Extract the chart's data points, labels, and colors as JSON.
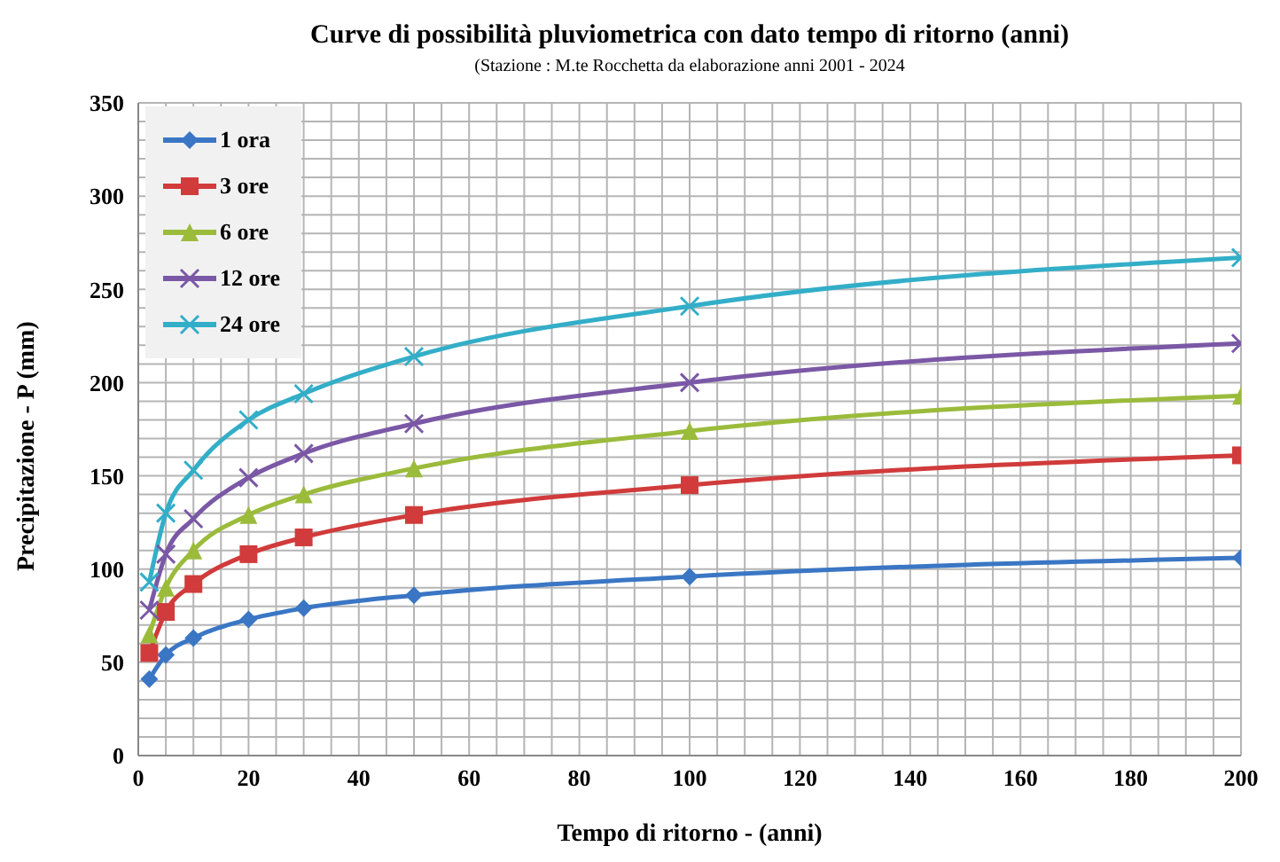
{
  "chart_data": {
    "type": "line",
    "title": "Curve di possibilità pluviometrica con dato tempo di ritorno (anni)",
    "subtitle": "(Stazione : M.te Rocchetta da elaborazione anni 2001 - 2024",
    "xlabel": "Tempo di ritorno - (anni)",
    "ylabel": "Precipitazione - P (mm)",
    "x": [
      2,
      5,
      10,
      20,
      30,
      50,
      100,
      200
    ],
    "series": [
      {
        "name": "1 ora",
        "color": "#3a76c4",
        "marker": "diamond",
        "values": [
          41,
          54,
          63,
          73,
          79,
          86,
          96,
          106
        ]
      },
      {
        "name": "3 ore",
        "color": "#d13b3b",
        "marker": "square",
        "values": [
          55,
          77,
          92,
          108,
          117,
          129,
          145,
          161
        ]
      },
      {
        "name": "6 ore",
        "color": "#9bbb3b",
        "marker": "triangle",
        "values": [
          65,
          90,
          110,
          129,
          140,
          154,
          174,
          193
        ]
      },
      {
        "name": "12 ore",
        "color": "#7b58a6",
        "marker": "cross",
        "values": [
          78,
          108,
          127,
          149,
          162,
          178,
          200,
          221
        ]
      },
      {
        "name": "24 ore",
        "color": "#33aec8",
        "marker": "cross",
        "values": [
          93,
          130,
          153,
          180,
          194,
          214,
          241,
          267
        ]
      }
    ],
    "xlim": [
      0,
      200
    ],
    "xticks": [
      0,
      20,
      40,
      60,
      80,
      100,
      120,
      140,
      160,
      180,
      200
    ],
    "ylim": [
      0,
      350
    ],
    "yticks": [
      0,
      50,
      100,
      150,
      200,
      250,
      300,
      350
    ],
    "grid": true,
    "legend": "top left"
  }
}
